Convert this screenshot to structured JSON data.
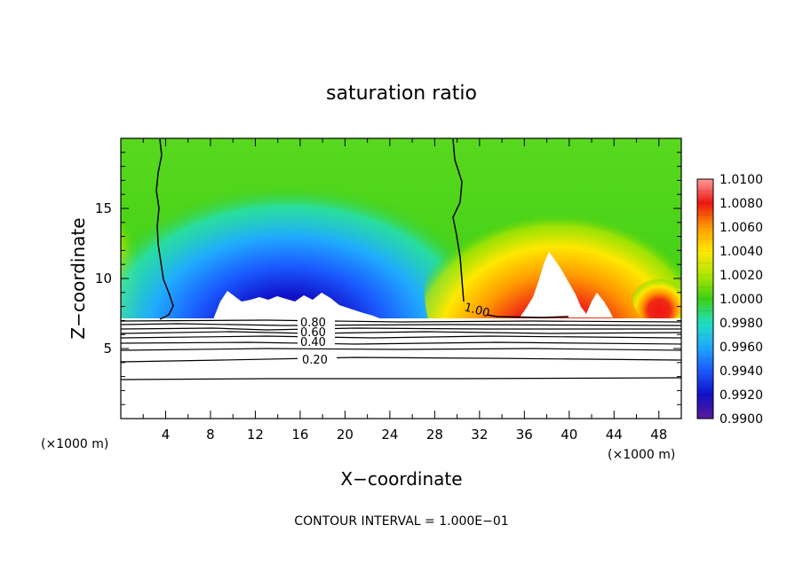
{
  "chart_data": {
    "type": "heatmap",
    "title": "saturation ratio",
    "xlabel": "X−coordinate",
    "ylabel": "Z−coordinate",
    "x_unit_left": "(×1000 m)",
    "x_unit_right": "(×1000 m)",
    "xlim": [
      0,
      50
    ],
    "ylim": [
      0,
      20
    ],
    "xticks": [
      4,
      8,
      12,
      16,
      20,
      24,
      28,
      32,
      36,
      40,
      44,
      48
    ],
    "yticks": [
      5,
      10,
      15
    ],
    "colorbar": {
      "min": 0.99,
      "max": 1.01,
      "tick_labels": [
        "1.0100",
        "1.0080",
        "1.0060",
        "1.0040",
        "1.0020",
        "1.0000",
        "0.9980",
        "0.9960",
        "0.9940",
        "0.9920",
        "0.9900"
      ]
    },
    "contour_labels": [
      "0.80",
      "0.60",
      "0.40",
      "0.20",
      "1.00"
    ],
    "footer": "CONTOUR INTERVAL = 1.000E−01"
  },
  "colors": {
    "neutral_green": "#3ecf14",
    "dry_purple": "#5a1a9a",
    "moist_red": "#f01414",
    "background": "#ffffff"
  }
}
